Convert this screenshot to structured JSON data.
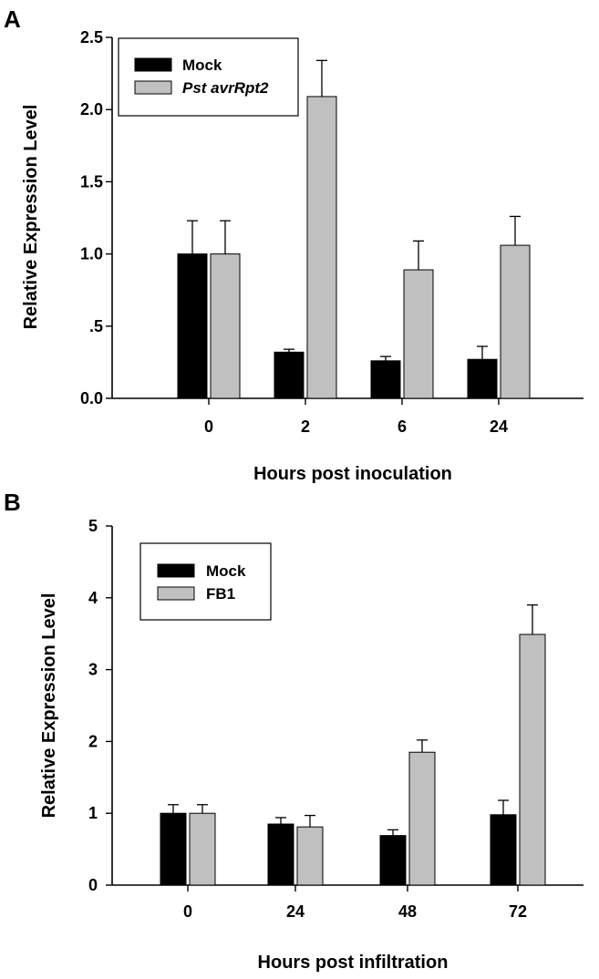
{
  "chart_data": [
    {
      "panel_label": "A",
      "type": "bar",
      "xlabel": "Hours post inoculation",
      "ylabel": "Relative Expression Level",
      "categories": [
        "0",
        "2",
        "6",
        "24"
      ],
      "ylim": [
        0,
        2.5
      ],
      "yticks": [
        0,
        0.5,
        1.0,
        1.5,
        2.0,
        2.5
      ],
      "ytick_labels": [
        "0.0",
        ".5",
        "1.0",
        "1.5",
        "2.0",
        "2.5"
      ],
      "legend_position": "top-left",
      "series": [
        {
          "name": "Mock",
          "color": "#000000",
          "italic": false,
          "values": [
            1.0,
            0.32,
            0.26,
            0.27
          ],
          "errors": [
            0.23,
            0.02,
            0.03,
            0.09
          ]
        },
        {
          "name": "Pst avrRpt2",
          "color": "#c0c0c0",
          "italic": true,
          "values": [
            1.0,
            2.09,
            0.89,
            1.06
          ],
          "errors": [
            0.23,
            0.25,
            0.2,
            0.2
          ]
        }
      ]
    },
    {
      "panel_label": "B",
      "type": "bar",
      "xlabel": "Hours post infiltration",
      "ylabel": "Relative Expression Level",
      "categories": [
        "0",
        "24",
        "48",
        "72"
      ],
      "ylim": [
        0,
        5
      ],
      "yticks": [
        0,
        1,
        2,
        3,
        4,
        5
      ],
      "ytick_labels": [
        "0",
        "1",
        "2",
        "3",
        "4",
        "5"
      ],
      "legend_position": "top-left",
      "series": [
        {
          "name": "Mock",
          "color": "#000000",
          "italic": false,
          "values": [
            1.0,
            0.85,
            0.69,
            0.98
          ],
          "errors": [
            0.12,
            0.09,
            0.08,
            0.2
          ]
        },
        {
          "name": "FB1",
          "color": "#c0c0c0",
          "italic": false,
          "values": [
            1.0,
            0.81,
            1.85,
            3.49
          ],
          "errors": [
            0.12,
            0.16,
            0.17,
            0.41
          ]
        }
      ]
    }
  ]
}
